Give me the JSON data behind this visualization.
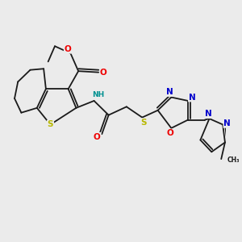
{
  "bg_color": "#ebebeb",
  "fig_size": [
    3.0,
    3.0
  ],
  "dpi": 100,
  "bond_color": "#1a1a1a",
  "bond_lw": 1.3,
  "S_color": "#b8b800",
  "O_color": "#ee0000",
  "N_color": "#0000cc",
  "NH_color": "#009090",
  "C_color": "#1a1a1a",
  "xlim": [
    0,
    10
  ],
  "ylim": [
    0,
    10
  ]
}
